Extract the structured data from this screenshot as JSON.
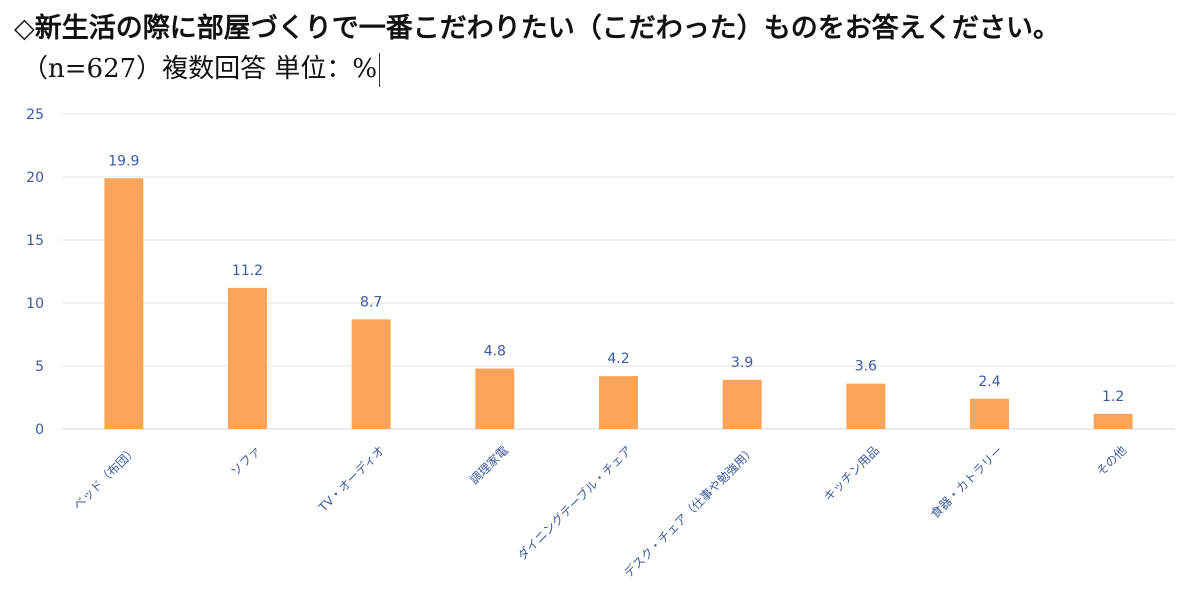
{
  "chart_data": {
    "type": "bar",
    "title": "◇新生活の際に部屋づくりで一番こだわりたい（こだわった）ものをお答えください。",
    "subtitle": "（n=627）複数回答 単位：%",
    "categories": [
      "ベッド（布団）",
      "ソファ",
      "TV・オーディオ",
      "調理家電",
      "ダイニングテーブル・チェア",
      "デスク・チェア（仕事や勉強用）",
      "キッチン用品",
      "食器・カトラリー",
      "その他"
    ],
    "values": [
      19.9,
      11.2,
      8.7,
      4.8,
      4.2,
      3.9,
      3.6,
      2.4,
      1.2
    ],
    "value_labels": [
      "19.9",
      "11.2",
      "8.7",
      "4.8",
      "4.2",
      "3.9",
      "3.6",
      "2.4",
      "1.2"
    ],
    "yticks": [
      "0",
      "5",
      "10",
      "15",
      "20",
      "25"
    ],
    "ylim": [
      0,
      25
    ],
    "xlabel": "",
    "ylabel": "",
    "grid": true,
    "bar_color": "#f9a458",
    "text_color": "#3d5a9e",
    "grid_color": "#dfe3ea"
  }
}
